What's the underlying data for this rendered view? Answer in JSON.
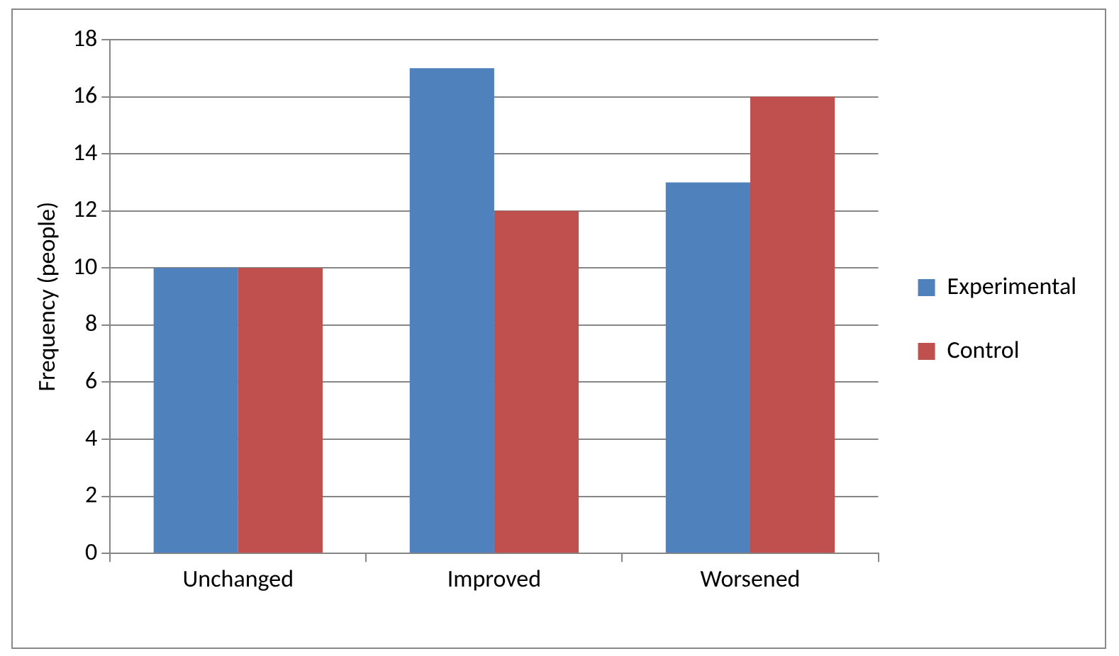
{
  "chart_data": {
    "type": "bar",
    "ylabel": "Frequency (people)",
    "categories": [
      "Unchanged",
      "Improved",
      "Worsened"
    ],
    "series": [
      {
        "name": "Experimental",
        "color": "#4f81bd",
        "values": [
          10,
          17,
          13
        ]
      },
      {
        "name": "Control",
        "color": "#c0504d",
        "values": [
          10,
          12,
          16
        ]
      }
    ],
    "ylim": [
      0,
      18
    ],
    "yticks": [
      0,
      2,
      4,
      6,
      8,
      10,
      12,
      14,
      16,
      18
    ],
    "grid": "y",
    "legend": "right"
  }
}
